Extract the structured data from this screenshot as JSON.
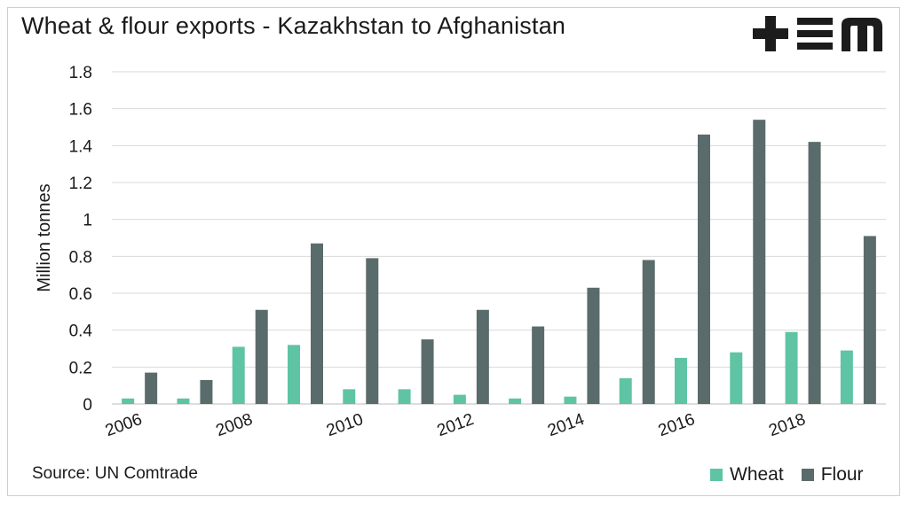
{
  "header": {
    "title": "Wheat & flour exports - Kazakhstan to Afghanistan"
  },
  "logo": {
    "icon": "tem-logo-icon",
    "color": "#1c1c1c"
  },
  "footer": {
    "source": "Source: UN Comtrade"
  },
  "chart_data": {
    "type": "bar",
    "title": "Wheat & flour exports - Kazakhstan to Afghanistan",
    "xlabel": "",
    "ylabel": "Million tonnes",
    "ylim": [
      0,
      1.8
    ],
    "yticks": [
      "0",
      "0.2",
      "0.4",
      "0.6",
      "0.8",
      "1",
      "1.2",
      "1.4",
      "1.6",
      "1.8"
    ],
    "categories": [
      "2006",
      "2007",
      "2008",
      "2009",
      "2010",
      "2011",
      "2012",
      "2013",
      "2014",
      "2015",
      "2016",
      "2017",
      "2018",
      "2019"
    ],
    "x_tick_labels": [
      "2006",
      "",
      "2008",
      "",
      "2010",
      "",
      "2012",
      "",
      "2014",
      "",
      "2016",
      "",
      "2018",
      ""
    ],
    "grid": true,
    "legend_position": "bottom-right",
    "series": [
      {
        "name": "Wheat",
        "color": "#5ec4a4",
        "values": [
          0.03,
          0.03,
          0.31,
          0.32,
          0.08,
          0.08,
          0.05,
          0.03,
          0.04,
          0.14,
          0.25,
          0.28,
          0.39,
          0.29
        ]
      },
      {
        "name": "Flour",
        "color": "#5a6b6b",
        "values": [
          0.17,
          0.13,
          0.51,
          0.87,
          0.79,
          0.35,
          0.51,
          0.42,
          0.63,
          0.78,
          1.46,
          1.54,
          1.42,
          0.91
        ]
      }
    ]
  }
}
